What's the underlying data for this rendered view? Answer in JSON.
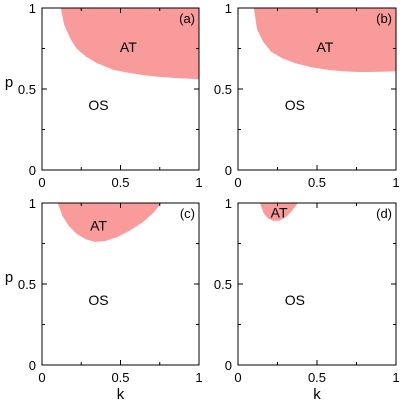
{
  "chart_data": [
    {
      "type": "area",
      "panel_label": "(a)",
      "xlabel": "",
      "ylabel": "p",
      "xlim": [
        0,
        1
      ],
      "ylim": [
        0,
        1
      ],
      "x_ticks": [
        "0",
        "0.5",
        "1"
      ],
      "y_ticks": [
        "0",
        "0.5",
        "1"
      ],
      "fill_color": "#fa9b9b",
      "regions": [
        {
          "label": "AT",
          "label_at": [
            0.55,
            0.76
          ]
        },
        {
          "label": "OS",
          "label_at": [
            0.36,
            0.4
          ]
        }
      ],
      "boundary": {
        "x": [
          0.12,
          0.14,
          0.18,
          0.22,
          0.28,
          0.35,
          0.45,
          0.55,
          0.65,
          0.75,
          0.85,
          1.0
        ],
        "y": [
          1.0,
          0.9,
          0.81,
          0.75,
          0.7,
          0.66,
          0.62,
          0.6,
          0.585,
          0.575,
          0.568,
          0.56
        ]
      }
    },
    {
      "type": "area",
      "panel_label": "(b)",
      "xlabel": "",
      "ylabel": "",
      "xlim": [
        0,
        1
      ],
      "ylim": [
        0,
        1
      ],
      "x_ticks": [
        "0",
        "0.5",
        "1"
      ],
      "y_ticks": [
        "0",
        "0.5",
        "1"
      ],
      "fill_color": "#fa9b9b",
      "regions": [
        {
          "label": "AT",
          "label_at": [
            0.55,
            0.76
          ]
        },
        {
          "label": "OS",
          "label_at": [
            0.36,
            0.4
          ]
        }
      ],
      "boundary": {
        "x": [
          0.1,
          0.12,
          0.16,
          0.21,
          0.28,
          0.36,
          0.46,
          0.56,
          0.66,
          0.76,
          0.85,
          1.0
        ],
        "y": [
          1.0,
          0.87,
          0.79,
          0.73,
          0.69,
          0.66,
          0.635,
          0.62,
          0.61,
          0.605,
          0.605,
          0.61
        ]
      }
    },
    {
      "type": "area",
      "panel_label": "(c)",
      "xlabel": "k",
      "ylabel": "p",
      "xlim": [
        0,
        1
      ],
      "ylim": [
        0,
        1
      ],
      "x_ticks": [
        "0",
        "0.5",
        "1"
      ],
      "y_ticks": [
        "0",
        "0.5",
        "1"
      ],
      "fill_color": "#fa9b9b",
      "regions": [
        {
          "label": "AT",
          "label_at": [
            0.36,
            0.86
          ]
        },
        {
          "label": "OS",
          "label_at": [
            0.36,
            0.4
          ]
        }
      ],
      "boundary": {
        "x": [
          0.1,
          0.13,
          0.17,
          0.22,
          0.28,
          0.34,
          0.4,
          0.48,
          0.56,
          0.64,
          0.71,
          0.76
        ],
        "y": [
          1.0,
          0.92,
          0.86,
          0.81,
          0.775,
          0.76,
          0.765,
          0.79,
          0.83,
          0.88,
          0.94,
          1.0
        ]
      }
    },
    {
      "type": "area",
      "panel_label": "(d)",
      "xlabel": "k",
      "ylabel": "",
      "xlim": [
        0,
        1
      ],
      "ylim": [
        0,
        1
      ],
      "x_ticks": [
        "0",
        "0.5",
        "1"
      ],
      "y_ticks": [
        "0",
        "0.5",
        "1"
      ],
      "fill_color": "#fa9b9b",
      "regions": [
        {
          "label": "AT",
          "label_at": [
            0.26,
            0.94
          ]
        },
        {
          "label": "OS",
          "label_at": [
            0.36,
            0.4
          ]
        }
      ],
      "boundary": {
        "x": [
          0.14,
          0.16,
          0.19,
          0.22,
          0.26,
          0.3,
          0.34,
          0.38
        ],
        "y": [
          1.0,
          0.94,
          0.905,
          0.89,
          0.89,
          0.91,
          0.95,
          1.0
        ]
      }
    }
  ]
}
